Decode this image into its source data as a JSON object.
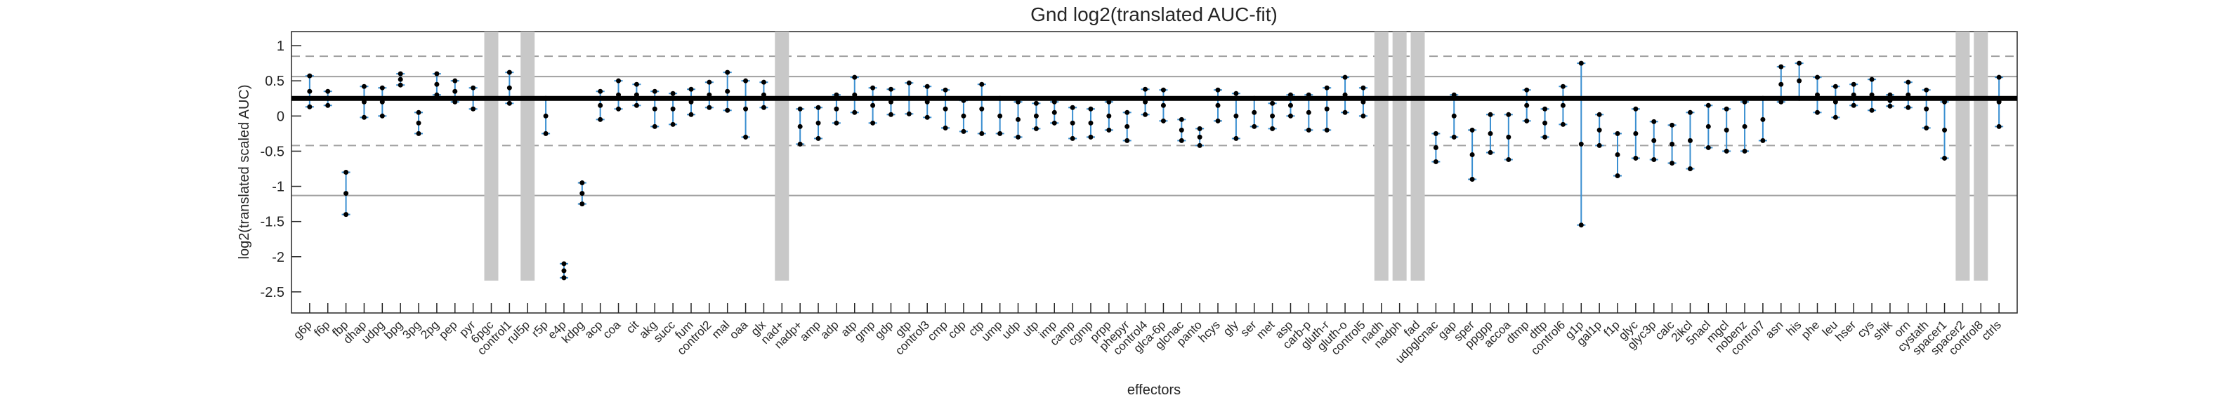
{
  "chart_data": {
    "type": "errorbar",
    "title": "Gnd log2(translated AUC-fit)",
    "x_label": "effectors",
    "y_label": "log2(translated scaled AUC)",
    "categories": [
      "g6p",
      "f6p",
      "fbp",
      "dhap",
      "udpg",
      "bpg",
      "3pg",
      "2pg",
      "pep",
      "pyr",
      "6pgc",
      "control1",
      "rul5p",
      "r5p",
      "e4p",
      "kdpg",
      "acp",
      "coa",
      "cit",
      "akg",
      "succ",
      "fum",
      "control2",
      "mal",
      "oaa",
      "glx",
      "nad+",
      "nadp+",
      "amp",
      "adp",
      "atp",
      "gmp",
      "gdp",
      "gtp",
      "control3",
      "cmp",
      "cdp",
      "ctp",
      "ump",
      "udp",
      "utp",
      "imp",
      "camp",
      "cgmp",
      "prpp",
      "phepyr",
      "control4",
      "glca-6p",
      "glcnac",
      "panto",
      "hcys",
      "gly",
      "ser",
      "met",
      "asp",
      "carb-p",
      "gluth-r",
      "gluth-o",
      "control5",
      "nadh",
      "nadph",
      "fad",
      "udpglcnac",
      "gap",
      "sper",
      "ppgpp",
      "accoa",
      "dtmp",
      "dttp",
      "control6",
      "g1p",
      "gal1p",
      "f1p",
      "glyc",
      "glyc3p",
      "calc",
      "2ikcl",
      "5nacl",
      "mgcl",
      "nobenz",
      "control7",
      "asn",
      "his",
      "phe",
      "leu",
      "hser",
      "cys",
      "shik",
      "orn",
      "cystath",
      "spacer1",
      "spacer2",
      "control8",
      "ctrls"
    ],
    "values": [
      0.35,
      0.25,
      -1.1,
      0.2,
      0.2,
      0.52,
      -0.1,
      0.45,
      0.35,
      0.25,
      null,
      0.4,
      null,
      0.0,
      -2.2,
      -1.1,
      0.15,
      0.3,
      0.3,
      0.1,
      0.1,
      0.2,
      0.3,
      0.35,
      0.1,
      0.3,
      null,
      -0.15,
      -0.1,
      0.1,
      0.3,
      0.15,
      0.2,
      0.25,
      0.2,
      0.1,
      0.0,
      0.1,
      0.0,
      -0.05,
      0.0,
      0.05,
      -0.1,
      -0.1,
      0.0,
      -0.15,
      0.2,
      0.15,
      -0.2,
      -0.3,
      0.15,
      0.0,
      0.05,
      0.0,
      0.15,
      0.05,
      0.1,
      0.3,
      0.2,
      null,
      null,
      null,
      -0.45,
      0.0,
      -0.55,
      -0.25,
      -0.3,
      0.15,
      -0.1,
      0.15,
      -0.4,
      -0.2,
      -0.55,
      -0.25,
      -0.35,
      -0.4,
      -0.35,
      -0.15,
      -0.2,
      -0.15,
      -0.05,
      0.45,
      0.5,
      0.3,
      0.2,
      0.3,
      0.3,
      0.22,
      0.3,
      0.1,
      -0.2,
      null,
      null,
      0.2
    ],
    "errors": [
      0.22,
      0.1,
      0.3,
      0.22,
      0.2,
      0.08,
      0.15,
      0.15,
      0.15,
      0.15,
      null,
      0.22,
      null,
      0.25,
      0.1,
      0.15,
      0.2,
      0.2,
      0.15,
      0.25,
      0.22,
      0.18,
      0.18,
      0.27,
      0.4,
      0.18,
      null,
      0.25,
      0.22,
      0.2,
      0.25,
      0.25,
      0.18,
      0.22,
      0.22,
      0.27,
      0.22,
      0.35,
      0.25,
      0.25,
      0.18,
      0.15,
      0.22,
      0.2,
      0.2,
      0.2,
      0.18,
      0.22,
      0.15,
      0.12,
      0.22,
      0.32,
      0.2,
      0.18,
      0.15,
      0.25,
      0.3,
      0.25,
      0.2,
      null,
      null,
      null,
      0.2,
      0.3,
      0.35,
      0.27,
      0.32,
      0.22,
      0.2,
      0.27,
      1.15,
      0.22,
      0.3,
      0.35,
      0.27,
      0.27,
      0.4,
      0.3,
      0.3,
      0.35,
      0.3,
      0.25,
      0.25,
      0.25,
      0.22,
      0.15,
      0.22,
      0.08,
      0.18,
      0.27,
      0.4,
      null,
      null,
      0.35
    ],
    "bar_color": "#3a8fd1",
    "point_color": "#000000",
    "missing_color": "#c8c8c8",
    "ylim": [
      -2.8,
      1.2
    ],
    "yticks": [
      1,
      0.5,
      0,
      -0.5,
      -1,
      -1.5,
      -2,
      -2.5
    ],
    "reference_line": 0.25,
    "dashed_lines": [
      0.85,
      -0.42
    ],
    "gray_lines": [
      0.56,
      -1.13
    ]
  }
}
